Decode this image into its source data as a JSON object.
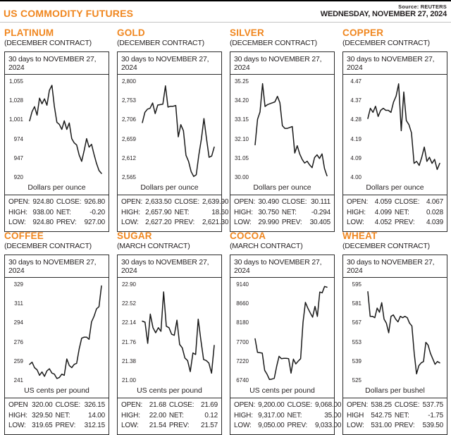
{
  "colors": {
    "accent": "#F0861E",
    "ink": "#231F20",
    "chart_line": "#1A1A1A",
    "rule": "#C4C4C4"
  },
  "header": {
    "title": "US COMMODITY FUTURES",
    "source": "Source: REUTERS",
    "date": "WEDNESDAY, NOVEMBER 27, 2024"
  },
  "panels": [
    {
      "title": "PLATINUM",
      "contract": "(DECEMBER CONTRACT)",
      "period": "30 days to NOVEMBER 27, 2024",
      "unit": "Dollars per ounce",
      "stats": [
        [
          "OPEN:",
          "924.80",
          "CLOSE:",
          "926.80"
        ],
        [
          "HIGH:",
          "938.00",
          "NET:",
          "-0.20"
        ],
        [
          "LOW:",
          "924.80",
          "PREV:",
          "927.00"
        ]
      ]
    },
    {
      "title": "GOLD",
      "contract": "(DECEMBER CONTRACT)",
      "period": "30 days to NOVEMBER 27, 2024",
      "unit": "Dollars per ounce",
      "stats": [
        [
          "OPEN:",
          "2,633.50",
          "CLOSE:",
          "2,639.90"
        ],
        [
          "HIGH:",
          "2,657.90",
          "NET:",
          "18.60"
        ],
        [
          "LOW:",
          "2,627.20",
          "PREV:",
          "2,621.30"
        ]
      ]
    },
    {
      "title": "SILVER",
      "contract": "(DECEMBER CONTRACT)",
      "period": "30 days to NOVEMBER 27, 2024",
      "unit": "Dollars per ounce",
      "stats": [
        [
          "OPEN:",
          "30.490",
          "CLOSE:",
          "30.111"
        ],
        [
          "HIGH:",
          "30.750",
          "NET:",
          "-0.294"
        ],
        [
          "LOW:",
          "29.990",
          "PREV:",
          "30.405"
        ]
      ]
    },
    {
      "title": "COPPER",
      "contract": "(DECEMBER CONTRACT)",
      "period": "30 days to NOVEMBER 27, 2024",
      "unit": "Dollars per ounce",
      "stats": [
        [
          "OPEN:",
          "4.059",
          "CLOSE:",
          "4.067"
        ],
        [
          "HIGH:",
          "4.099",
          "NET:",
          "0.028"
        ],
        [
          "LOW:",
          "4.052",
          "PREV:",
          "4.039"
        ]
      ]
    },
    {
      "title": "COFFEE",
      "contract": "(DECEMBER CONTRACT)",
      "period": "30 days to NOVEMBER 27, 2024",
      "unit": "US cents per pound",
      "stats": [
        [
          "OPEN",
          "320.00",
          "CLOSE:",
          "326.15"
        ],
        [
          "HIGH:",
          "329.50",
          "NET:",
          "14.00"
        ],
        [
          "LOW:",
          "319.65",
          "PREV:",
          "312.15"
        ]
      ]
    },
    {
      "title": "SUGAR",
      "contract": "(MARCH CONTRACT)",
      "period": "30 days to NOVEMBER 27, 2024",
      "unit": "US cents per pound",
      "stats": [
        [
          "OPEN:",
          "21.68",
          "CLOSE:",
          "21.69"
        ],
        [
          "HIGH:",
          "22.00",
          "NET:",
          "0.12"
        ],
        [
          "LOW:",
          "21.54",
          "PREV:",
          "21.57"
        ]
      ]
    },
    {
      "title": "COCOA",
      "contract": "(MARCH CONTRACT)",
      "period": "30 days to NOVEMBER 27, 2024",
      "unit": "US cents per pound",
      "stats": [
        [
          "OPEN:",
          "9,200.00",
          "CLOSE:",
          "9,068.00"
        ],
        [
          "HIGH:",
          "9,317.00",
          "NET:",
          "35.00"
        ],
        [
          "LOW:",
          "9,050.00",
          "PREV:",
          "9,033.00"
        ]
      ]
    },
    {
      "title": "WHEAT",
      "contract": "(DECEMBER CONTRACT)",
      "period": "30 days to NOVEMBER 27, 2024",
      "unit": "Dollars per bushel",
      "stats": [
        [
          "OPEN:",
          "538.25",
          "CLOSE:",
          "537.75"
        ],
        [
          "HIGH",
          "542.75",
          "NET:",
          "-1.75"
        ],
        [
          "LOW:",
          "531.00",
          "PREV:",
          "539.50"
        ]
      ]
    }
  ],
  "chart_data": [
    {
      "type": "line",
      "title": "PLATINUM (DECEMBER CONTRACT)",
      "xlabel": "30 days to NOVEMBER 27, 2024",
      "ylabel": "Dollars per ounce",
      "ylim": [
        920,
        1055
      ],
      "yticks": [
        "1,055",
        "1,028",
        "1,001",
        "974",
        "947",
        "920"
      ],
      "grid": false,
      "values": [
        1000,
        1013,
        1020,
        1008,
        1032,
        1024,
        1031,
        1022,
        1043,
        1050,
        1020,
        998,
        995,
        988,
        1000,
        988,
        997,
        975,
        969,
        966,
        952,
        943,
        958,
        975,
        963,
        967,
        953,
        940,
        930,
        926
      ]
    },
    {
      "type": "line",
      "title": "GOLD (DECEMBER CONTRACT)",
      "xlabel": "30 days to NOVEMBER 27, 2024",
      "ylabel": "Dollars per ounce",
      "ylim": [
        2565,
        2800
      ],
      "yticks": [
        "2,800",
        "2,753",
        "2,706",
        "2,659",
        "2,612",
        "2,565"
      ],
      "grid": false,
      "values": [
        2700,
        2725,
        2733,
        2735,
        2748,
        2722,
        2743,
        2744,
        2745,
        2790,
        2738,
        2740,
        2740,
        2742,
        2665,
        2695,
        2680,
        2620,
        2605,
        2580,
        2568,
        2572,
        2620,
        2660,
        2710,
        2660,
        2615,
        2618,
        2640
      ]
    },
    {
      "type": "line",
      "title": "SILVER (DECEMBER CONTRACT)",
      "xlabel": "30 days to NOVEMBER 27, 2024",
      "ylabel": "Dollars per ounce",
      "ylim": [
        30.0,
        35.25
      ],
      "yticks": [
        "35.25",
        "34.20",
        "33.15",
        "32.10",
        "31.05",
        "30.00"
      ],
      "grid": false,
      "values": [
        31.8,
        33.2,
        33.6,
        35.15,
        33.9,
        34.0,
        34.05,
        34.1,
        34.15,
        34.45,
        34.1,
        32.85,
        32.7,
        32.7,
        32.75,
        32.8,
        31.35,
        31.75,
        31.3,
        31.0,
        30.8,
        30.9,
        30.7,
        30.55,
        31.1,
        31.25,
        31.05,
        31.3,
        30.5,
        30.1
      ]
    },
    {
      "type": "line",
      "title": "COPPER (DECEMBER CONTRACT)",
      "xlabel": "30 days to NOVEMBER 27, 2024",
      "ylabel": "Dollars per ounce",
      "ylim": [
        4.0,
        4.47
      ],
      "yticks": [
        "4.47",
        "4.37",
        "4.28",
        "4.19",
        "4.09",
        "4.00"
      ],
      "grid": false,
      "values": [
        4.29,
        4.34,
        4.32,
        4.35,
        4.3,
        4.33,
        4.34,
        4.33,
        4.33,
        4.32,
        4.37,
        4.4,
        4.46,
        4.23,
        4.42,
        4.28,
        4.26,
        4.22,
        4.07,
        4.08,
        4.06,
        4.1,
        4.15,
        4.08,
        4.1,
        4.07,
        4.09,
        4.04,
        4.07
      ]
    },
    {
      "type": "line",
      "title": "COFFEE (DECEMBER CONTRACT)",
      "xlabel": "30 days to NOVEMBER 27, 2024",
      "ylabel": "US cents per pound",
      "ylim": [
        241,
        329
      ],
      "yticks": [
        "329",
        "311",
        "294",
        "276",
        "259",
        "241"
      ],
      "grid": false,
      "values": [
        256,
        258,
        253,
        251,
        246,
        249,
        245,
        250,
        252,
        248,
        247,
        243,
        244,
        247,
        246,
        261,
        255,
        253,
        256,
        257,
        270,
        280,
        281,
        281,
        279,
        295,
        300,
        307,
        309,
        328
      ]
    },
    {
      "type": "line",
      "title": "SUGAR (MARCH CONTRACT)",
      "xlabel": "30 days to NOVEMBER 27, 2024",
      "ylabel": "US cents per pound",
      "ylim": [
        21.0,
        22.9
      ],
      "yticks": [
        "22.90",
        "22.52",
        "22.14",
        "21.76",
        "21.38",
        "21.00"
      ],
      "grid": false,
      "values": [
        22.18,
        22.16,
        21.74,
        22.32,
        22.05,
        21.95,
        22.05,
        21.98,
        22.76,
        22.08,
        22.05,
        21.92,
        21.9,
        22.2,
        21.72,
        21.65,
        21.45,
        21.4,
        21.18,
        21.55,
        21.52,
        22.22,
        21.8,
        21.42,
        21.4,
        21.35,
        21.15,
        21.7
      ]
    },
    {
      "type": "line",
      "title": "COCOA (MARCH CONTRACT)",
      "xlabel": "30 days to NOVEMBER 27, 2024",
      "ylabel": "US cents per pound",
      "ylim": [
        6740,
        9140
      ],
      "yticks": [
        "9140",
        "8660",
        "8180",
        "7700",
        "7220",
        "6740"
      ],
      "grid": false,
      "values": [
        7790,
        7450,
        7440,
        7430,
        7000,
        6900,
        6770,
        6780,
        6800,
        7100,
        7350,
        7290,
        7300,
        7300,
        7290,
        6930,
        7280,
        7160,
        7230,
        7290,
        8200,
        8700,
        8560,
        8440,
        8330,
        8600,
        8350,
        8960,
        8940,
        9100,
        9080
      ]
    },
    {
      "type": "line",
      "title": "WHEAT (DECEMBER CONTRACT)",
      "xlabel": "30 days to NOVEMBER 27, 2024",
      "ylabel": "Dollars per bushel",
      "ylim": [
        525,
        595
      ],
      "yticks": [
        "595",
        "581",
        "567",
        "553",
        "539",
        "525"
      ],
      "grid": false,
      "values": [
        590,
        572,
        572,
        571,
        578,
        575,
        582,
        570,
        567,
        560,
        572,
        573,
        570,
        568,
        572,
        571,
        572,
        571,
        567,
        565,
        545,
        530,
        536,
        538,
        539,
        553,
        551,
        545,
        541,
        537,
        539,
        538
      ]
    }
  ]
}
